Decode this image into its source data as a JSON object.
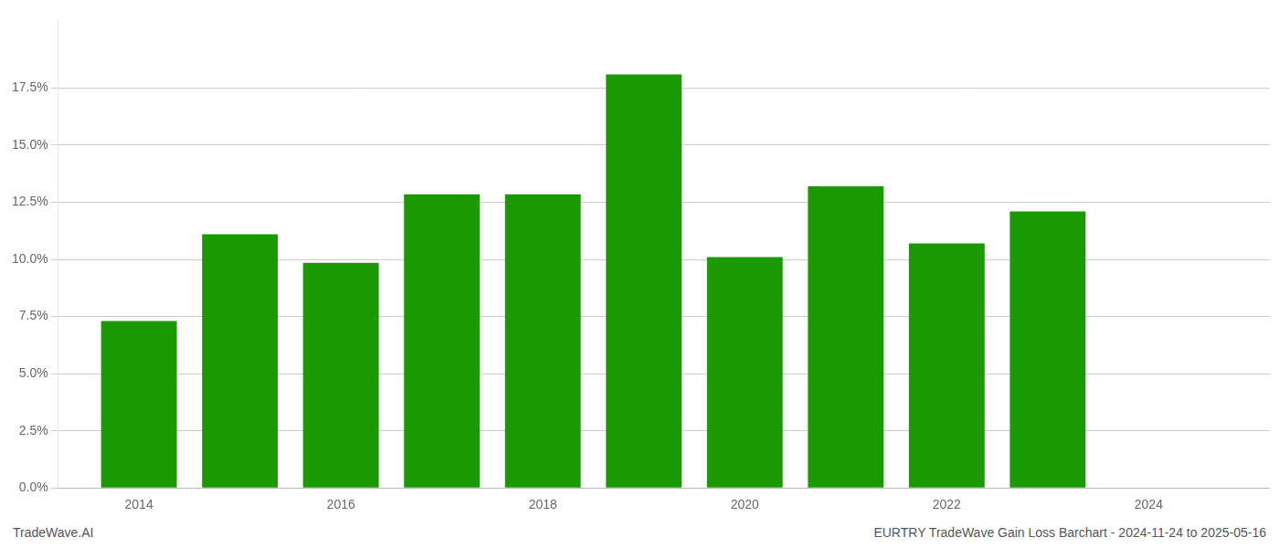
{
  "chart_data": {
    "type": "bar",
    "x": [
      2014,
      2015,
      2016,
      2017,
      2018,
      2019,
      2020,
      2021,
      2022,
      2023
    ],
    "values": [
      0.073,
      0.111,
      0.0985,
      0.1285,
      0.1285,
      0.181,
      0.101,
      0.132,
      0.107,
      0.121
    ],
    "color": "#1a9a00",
    "xlim": [
      2013.2,
      2025.2
    ],
    "xticks": [
      2014,
      2016,
      2018,
      2020,
      2022,
      2024
    ],
    "ylim": [
      0,
      0.205
    ],
    "yticks": [
      {
        "value": 0.0,
        "label": "0.0%"
      },
      {
        "value": 0.025,
        "label": "2.5%"
      },
      {
        "value": 0.05,
        "label": "5.0%"
      },
      {
        "value": 0.075,
        "label": "7.5%"
      },
      {
        "value": 0.1,
        "label": "10.0%"
      },
      {
        "value": 0.125,
        "label": "12.5%"
      },
      {
        "value": 0.15,
        "label": "15.0%"
      },
      {
        "value": 0.175,
        "label": "17.5%"
      }
    ],
    "grid": "y",
    "annotations": [
      "TradeWave.AI",
      "EURTRY TradeWave Gain Loss Barchart - 2024-11-24 to 2025-05-16"
    ]
  }
}
